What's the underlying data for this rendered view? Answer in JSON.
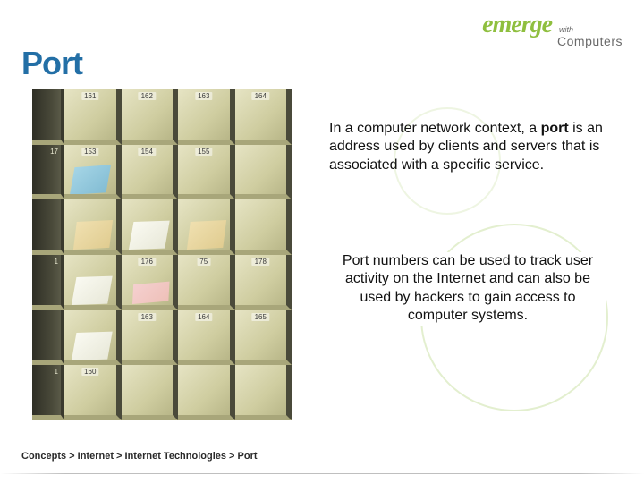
{
  "logo": {
    "emerge": "emerge",
    "with": "with",
    "computers": "Computers",
    "accent_color": "#8fbf3f",
    "sub_color": "#6a6a6a"
  },
  "title": {
    "text": "Port",
    "color": "#236fa6",
    "fontsize": 36
  },
  "paragraphs": {
    "p1_pre": "In a computer network context, a ",
    "p1_bold": "port",
    "p1_post": " is an address used by clients and servers that is associated with a specific service.",
    "p2": "Port numbers can be used to track user activity on the Internet and can also be used by hackers to gain access to computer systems.",
    "fontsize": 16,
    "text_color": "#111111"
  },
  "breadcrumb": {
    "text": "Concepts > Internet > Internet Technologies > Port",
    "fontsize": 11
  },
  "image": {
    "description": "mail-sorting cubby shelf photo",
    "rows": 6,
    "cols": 5,
    "cubby_bg": "#d9d7b3",
    "divider_color": "#4a4a3a",
    "edge_labels": [
      "",
      "17",
      "",
      "1",
      "",
      "1"
    ],
    "top_labels": [
      "161",
      "162",
      "163",
      "164"
    ],
    "mid_labels": [
      "153",
      "154",
      "155",
      ""
    ],
    "mid2_labels": [
      "",
      "176",
      "75",
      "178"
    ],
    "low_labels": [
      "",
      "163",
      "164",
      "165"
    ],
    "bot_labels": [
      "160",
      "",
      "",
      ""
    ]
  },
  "decor": {
    "circle_color": "rgba(143,191,63,0.25)"
  }
}
